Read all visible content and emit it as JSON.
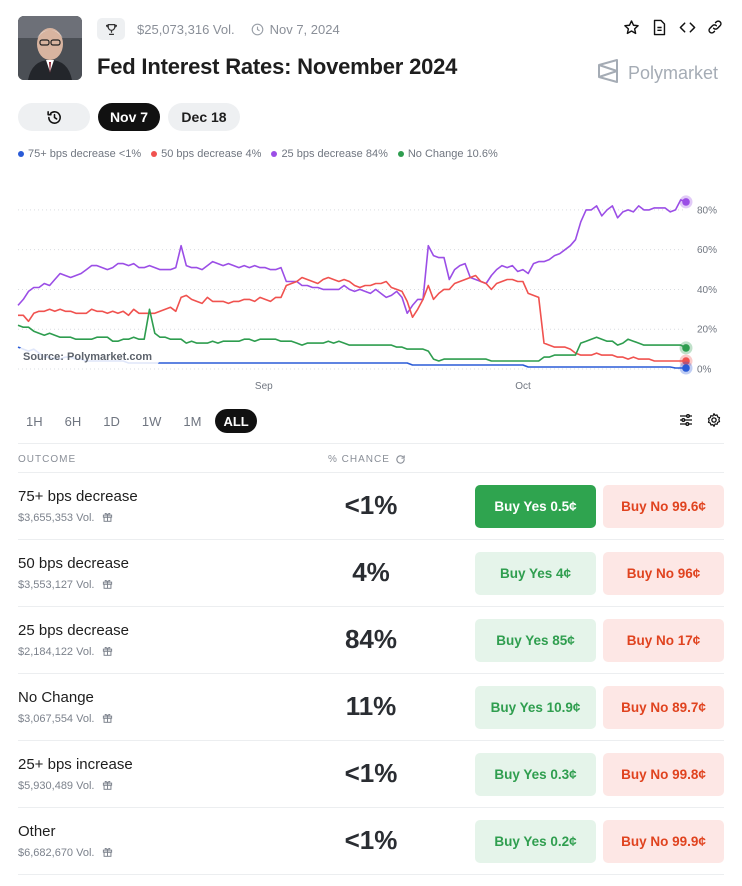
{
  "header": {
    "volume": "$25,073,316 Vol.",
    "date": "Nov 7, 2024",
    "title": "Fed Interest Rates: November 2024",
    "brand": "Polymarket"
  },
  "date_tabs": [
    {
      "label": "Nov 7",
      "active": true
    },
    {
      "label": "Dec 18",
      "active": false
    }
  ],
  "legend": [
    {
      "label": "75+ bps decrease <1%",
      "color": "#2a5bd7"
    },
    {
      "label": "50 bps decrease 4%",
      "color": "#f0524f"
    },
    {
      "label": "25 bps decrease 84%",
      "color": "#9b4ee6"
    },
    {
      "label": "No Change 10.6%",
      "color": "#2e9d4f"
    }
  ],
  "chart_data": {
    "type": "line",
    "source": "Source: Polymarket.com",
    "x_ticks": [
      "Sep",
      "Oct"
    ],
    "y_ticks": [
      "0%",
      "20%",
      "40%",
      "60%",
      "80%"
    ],
    "ylim": [
      0,
      90
    ],
    "grid": true,
    "series": [
      {
        "name": "25 bps decrease",
        "color": "#9b4ee6",
        "values": [
          32,
          35,
          39,
          41,
          41,
          43,
          42,
          45,
          48,
          47,
          46,
          47,
          48,
          50,
          52,
          52,
          51,
          50,
          51,
          53,
          53,
          52,
          53,
          51,
          51,
          52,
          51,
          50,
          50,
          50,
          51,
          62,
          52,
          51,
          51,
          50,
          52,
          54,
          53,
          52,
          53,
          52,
          51,
          52,
          51,
          52,
          51,
          51,
          50,
          50,
          51,
          44,
          44,
          44,
          42,
          42,
          41,
          41,
          40,
          40,
          40,
          40,
          42,
          40,
          39,
          40,
          39,
          38,
          40,
          38,
          36,
          37,
          39,
          36,
          28,
          32,
          35,
          35,
          62,
          57,
          56,
          56,
          45,
          50,
          52,
          53,
          46,
          45,
          44,
          43,
          47,
          50,
          52,
          51,
          52,
          49,
          50,
          48,
          53,
          54,
          54,
          55,
          57,
          58,
          60,
          62,
          65,
          74,
          80,
          80,
          82,
          77,
          80,
          82,
          76,
          79,
          80,
          79,
          82,
          80,
          80,
          81,
          81,
          81,
          79,
          80,
          85,
          84
        ]
      },
      {
        "name": "50 bps decrease",
        "color": "#f0524f",
        "values": [
          27,
          27,
          24,
          28,
          29,
          29,
          30,
          29,
          30,
          29,
          29,
          28,
          28,
          28,
          30,
          29,
          29,
          28,
          29,
          28,
          29,
          27,
          30,
          28,
          28,
          28,
          28,
          29,
          30,
          31,
          29,
          36,
          37,
          35,
          34,
          33,
          36,
          34,
          34,
          34,
          33,
          34,
          34,
          35,
          35,
          34,
          36,
          35,
          34,
          36,
          36,
          42,
          43,
          44,
          46,
          45,
          44,
          43,
          45,
          46,
          45,
          44,
          45,
          44,
          42,
          41,
          42,
          42,
          43,
          43,
          44,
          41,
          40,
          39,
          34,
          26,
          30,
          35,
          42,
          35,
          38,
          40,
          40,
          43,
          44,
          45,
          46,
          47,
          44,
          43,
          40,
          43,
          44,
          45,
          45,
          44,
          44,
          38,
          37,
          36,
          13,
          12,
          11,
          11,
          11,
          10,
          8,
          7,
          7,
          7,
          8,
          7,
          7,
          7,
          6,
          6,
          5,
          6,
          5,
          5,
          5,
          4,
          4,
          4,
          4,
          4,
          4,
          4
        ]
      },
      {
        "name": "No Change",
        "color": "#2e9d4f",
        "values": [
          22,
          21,
          21,
          19,
          18,
          17,
          18,
          17,
          16,
          16,
          16,
          15,
          15,
          15,
          15,
          16,
          16,
          16,
          14,
          14,
          15,
          15,
          16,
          15,
          15,
          30,
          18,
          16,
          16,
          15,
          15,
          15,
          13,
          14,
          13,
          13,
          13,
          14,
          13,
          14,
          14,
          14,
          14,
          15,
          15,
          14,
          15,
          15,
          15,
          15,
          14,
          14,
          14,
          13,
          12,
          13,
          13,
          13,
          13,
          14,
          13,
          14,
          13,
          12,
          12,
          12,
          12,
          12,
          12,
          12,
          12,
          12,
          11,
          11,
          10,
          10,
          10,
          10,
          9,
          5,
          4,
          5,
          5,
          5,
          5,
          5,
          5,
          5,
          5,
          5,
          4,
          4,
          4,
          4,
          4,
          4,
          4,
          4,
          4,
          4,
          6,
          6,
          7,
          7,
          7,
          7,
          7,
          13,
          14,
          15,
          16,
          15,
          14,
          14,
          12,
          13,
          15,
          14,
          13,
          12,
          12,
          12,
          12,
          12,
          12,
          12,
          12,
          10.6
        ]
      },
      {
        "name": "75+ bps decrease",
        "color": "#2a5bd7",
        "values": [
          11,
          10,
          9,
          10,
          8,
          6,
          6,
          5,
          5,
          6,
          6,
          5,
          5,
          4,
          4,
          4,
          4,
          4,
          4,
          4,
          4,
          3,
          3,
          3,
          3,
          3,
          3,
          3,
          3,
          3,
          3,
          3,
          3,
          3,
          3,
          3,
          3,
          3,
          3,
          3,
          3,
          3,
          3,
          3,
          3,
          3,
          3,
          3,
          3,
          3,
          3,
          3,
          3,
          3,
          3,
          3,
          3,
          3,
          3,
          3,
          3,
          3,
          3,
          3,
          3,
          3,
          3,
          3,
          3,
          3,
          3,
          3,
          3,
          3,
          3,
          2,
          2,
          2,
          2,
          2,
          2,
          2,
          2,
          2,
          2,
          2,
          2,
          2,
          2,
          2,
          2,
          2,
          2,
          2,
          2,
          2,
          2,
          1,
          1,
          1,
          1,
          1,
          1,
          1,
          1,
          1,
          1,
          1,
          1,
          1,
          1,
          1,
          1,
          1,
          1,
          1,
          1,
          1,
          1,
          1,
          1,
          1,
          1,
          1,
          1,
          0.5,
          0.5,
          0.5
        ]
      }
    ]
  },
  "range_tabs": [
    {
      "label": "1H",
      "active": false
    },
    {
      "label": "6H",
      "active": false
    },
    {
      "label": "1D",
      "active": false
    },
    {
      "label": "1W",
      "active": false
    },
    {
      "label": "1M",
      "active": false
    },
    {
      "label": "ALL",
      "active": true
    }
  ],
  "table": {
    "col_outcome": "OUTCOME",
    "col_chance": "% CHANCE",
    "rows": [
      {
        "name": "75+ bps decrease",
        "vol": "$3,655,353 Vol.",
        "chance": "<1%",
        "yes": "Buy Yes 0.5¢",
        "no": "Buy No 99.6¢",
        "yes_selected": true
      },
      {
        "name": "50 bps decrease",
        "vol": "$3,553,127 Vol.",
        "chance": "4%",
        "yes": "Buy Yes 4¢",
        "no": "Buy No 96¢",
        "yes_selected": false
      },
      {
        "name": "25 bps decrease",
        "vol": "$2,184,122 Vol.",
        "chance": "84%",
        "yes": "Buy Yes 85¢",
        "no": "Buy No 17¢",
        "yes_selected": false
      },
      {
        "name": "No Change",
        "vol": "$3,067,554 Vol.",
        "chance": "11%",
        "yes": "Buy Yes 10.9¢",
        "no": "Buy No 89.7¢",
        "yes_selected": false
      },
      {
        "name": "25+ bps increase",
        "vol": "$5,930,489 Vol.",
        "chance": "<1%",
        "yes": "Buy Yes 0.3¢",
        "no": "Buy No 99.8¢",
        "yes_selected": false
      },
      {
        "name": "Other",
        "vol": "$6,682,670 Vol.",
        "chance": "<1%",
        "yes": "Buy Yes 0.2¢",
        "no": "Buy No 99.9¢",
        "yes_selected": false
      }
    ]
  }
}
